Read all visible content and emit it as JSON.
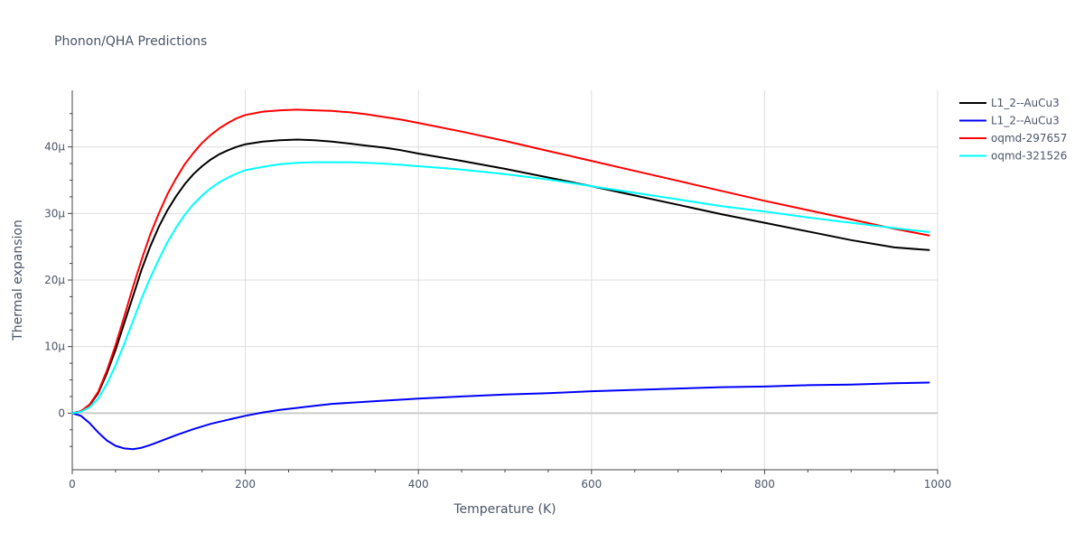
{
  "chart_data": {
    "type": "line",
    "title": "Phonon/QHA Predictions",
    "xlabel": "Temperature (K)",
    "ylabel": "Thermal expansion",
    "xlim": [
      0,
      1000
    ],
    "ylim": [
      -8.5,
      48.5
    ],
    "xticks": [
      0,
      200,
      400,
      600,
      800,
      1000
    ],
    "xtick_labels": [
      "0",
      "200",
      "400",
      "600",
      "800",
      "1000"
    ],
    "yticks": [
      0,
      10,
      20,
      30,
      40
    ],
    "ytick_labels": [
      "0",
      "10μ",
      "20μ",
      "30μ",
      "40μ"
    ],
    "grid": true,
    "legend_position": "top-right",
    "series": [
      {
        "name": "L1_2--AuCu3",
        "color": "#000000",
        "x": [
          0,
          10,
          20,
          30,
          40,
          50,
          60,
          70,
          80,
          90,
          100,
          110,
          120,
          130,
          140,
          150,
          160,
          170,
          180,
          190,
          200,
          220,
          240,
          260,
          280,
          300,
          320,
          340,
          360,
          380,
          400,
          450,
          500,
          550,
          600,
          650,
          700,
          750,
          800,
          850,
          900,
          950,
          990
        ],
        "y": [
          0,
          0.3,
          1.2,
          3.0,
          6.0,
          9.5,
          13.5,
          17.5,
          21.5,
          25.0,
          28.0,
          30.5,
          32.6,
          34.4,
          35.9,
          37.1,
          38.1,
          38.9,
          39.5,
          40.0,
          40.4,
          40.8,
          41.0,
          41.1,
          41.0,
          40.8,
          40.5,
          40.2,
          39.9,
          39.5,
          39.0,
          37.9,
          36.7,
          35.4,
          34.1,
          32.7,
          31.3,
          29.9,
          28.6,
          27.3,
          26.0,
          24.9,
          24.5
        ]
      },
      {
        "name": "L1_2--AuCu3",
        "color": "#0000ff",
        "x": [
          0,
          10,
          20,
          30,
          40,
          50,
          60,
          70,
          80,
          90,
          100,
          120,
          140,
          160,
          180,
          200,
          220,
          240,
          260,
          280,
          300,
          350,
          400,
          450,
          500,
          550,
          600,
          650,
          700,
          750,
          800,
          850,
          900,
          950,
          990
        ],
        "y": [
          0,
          -0.4,
          -1.5,
          -2.9,
          -4.1,
          -4.9,
          -5.3,
          -5.4,
          -5.2,
          -4.8,
          -4.3,
          -3.3,
          -2.4,
          -1.6,
          -1.0,
          -0.4,
          0.1,
          0.5,
          0.8,
          1.1,
          1.4,
          1.8,
          2.2,
          2.5,
          2.8,
          3.0,
          3.3,
          3.5,
          3.7,
          3.9,
          4.0,
          4.2,
          4.3,
          4.5,
          4.6
        ]
      },
      {
        "name": "oqmd-297657",
        "color": "#ff0000",
        "x": [
          0,
          10,
          20,
          30,
          40,
          50,
          60,
          70,
          80,
          90,
          100,
          110,
          120,
          130,
          140,
          150,
          160,
          170,
          180,
          190,
          200,
          220,
          240,
          260,
          280,
          300,
          320,
          340,
          360,
          380,
          400,
          450,
          500,
          550,
          600,
          650,
          700,
          750,
          800,
          850,
          900,
          950,
          990
        ],
        "y": [
          0,
          0.3,
          1.3,
          3.2,
          6.4,
          10.2,
          14.5,
          18.9,
          23.0,
          26.8,
          30.0,
          32.9,
          35.3,
          37.4,
          39.1,
          40.6,
          41.8,
          42.8,
          43.6,
          44.3,
          44.8,
          45.3,
          45.5,
          45.6,
          45.5,
          45.4,
          45.2,
          44.9,
          44.5,
          44.1,
          43.6,
          42.3,
          40.9,
          39.4,
          37.9,
          36.4,
          34.9,
          33.4,
          31.9,
          30.5,
          29.1,
          27.7,
          26.7
        ]
      },
      {
        "name": "oqmd-321526",
        "color": "#00ffff",
        "x": [
          0,
          10,
          20,
          30,
          40,
          50,
          60,
          70,
          80,
          90,
          100,
          110,
          120,
          130,
          140,
          150,
          160,
          170,
          180,
          190,
          200,
          220,
          240,
          260,
          280,
          300,
          320,
          340,
          360,
          380,
          400,
          450,
          500,
          550,
          600,
          650,
          700,
          750,
          800,
          850,
          900,
          950,
          990
        ],
        "y": [
          0,
          0.2,
          0.9,
          2.2,
          4.4,
          7.2,
          10.4,
          13.8,
          17.2,
          20.3,
          23.1,
          25.7,
          27.9,
          29.8,
          31.4,
          32.7,
          33.8,
          34.7,
          35.4,
          36.0,
          36.5,
          37.0,
          37.4,
          37.6,
          37.7,
          37.7,
          37.7,
          37.6,
          37.5,
          37.3,
          37.1,
          36.6,
          35.9,
          35.1,
          34.1,
          33.1,
          32.1,
          31.1,
          30.3,
          29.4,
          28.6,
          27.8,
          27.2
        ]
      }
    ]
  }
}
